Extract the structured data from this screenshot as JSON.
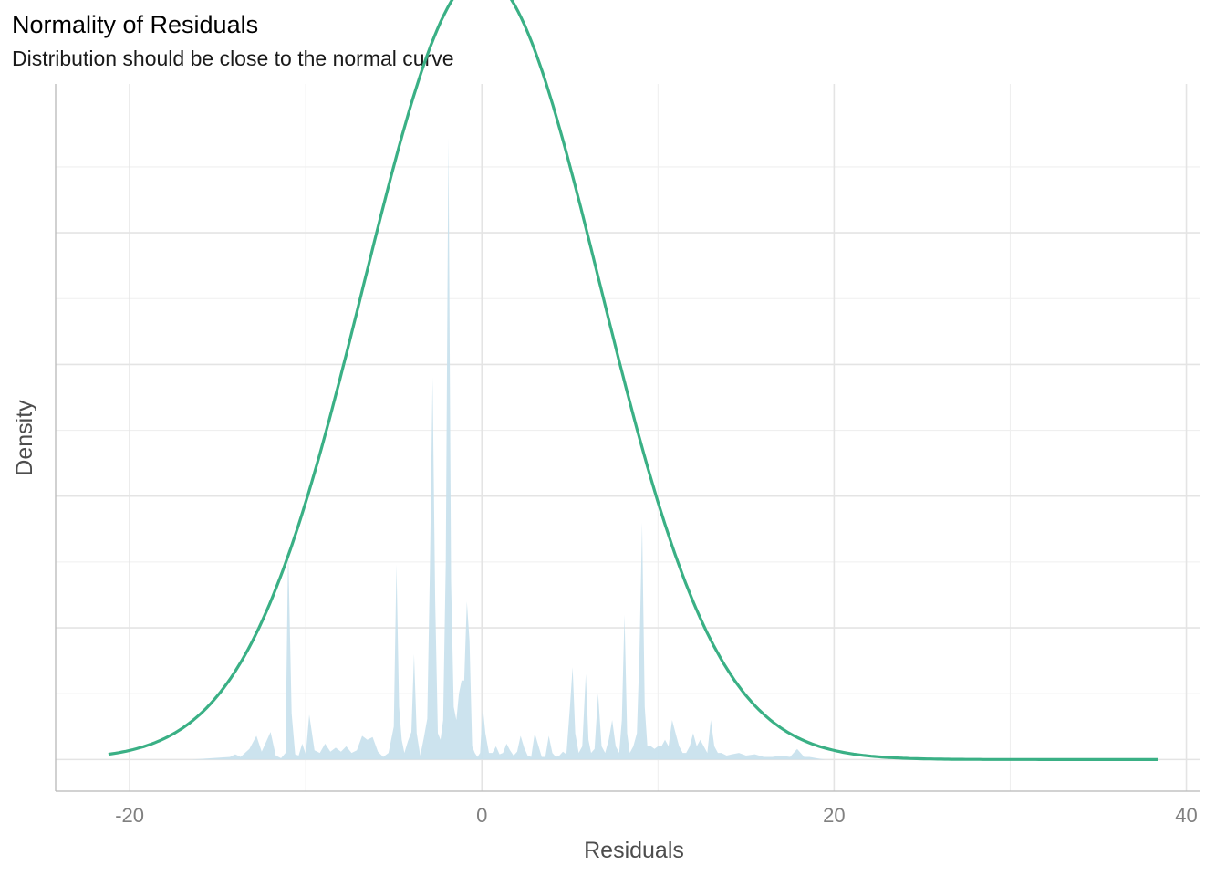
{
  "chart_data": {
    "type": "area",
    "title": "Normality of Residuals",
    "subtitle": "Distribution should be close to the normal curve",
    "xlabel": "Residuals",
    "ylabel": "Density",
    "xlim": [
      -24.2,
      40.8
    ],
    "ylim": [
      -0.0024,
      0.0513
    ],
    "x_ticks": [
      -20,
      0,
      20,
      40
    ],
    "x_tick_labels": [
      "-20",
      "0",
      "20",
      "40"
    ],
    "y_ticks": [
      0,
      0.01,
      0.02,
      0.03,
      0.04
    ],
    "y_minor_ticks": [
      0.005,
      0.015,
      0.025,
      0.035,
      0.045
    ],
    "y_tick_labels_shown": false,
    "grid": true,
    "series": [
      {
        "kind": "density",
        "color": "#c6e0ec",
        "opacity": 0.9,
        "x": [
          -16.5,
          -14.3,
          -14.0,
          -13.7,
          -13.2,
          -12.8,
          -12.5,
          -12.0,
          -11.7,
          -11.4,
          -11.15,
          -11.0,
          -10.8,
          -10.6,
          -10.4,
          -10.2,
          -10.0,
          -9.8,
          -9.5,
          -9.2,
          -8.9,
          -8.6,
          -8.3,
          -8.0,
          -7.7,
          -7.4,
          -7.1,
          -6.8,
          -6.5,
          -6.2,
          -5.9,
          -5.6,
          -5.3,
          -5.0,
          -4.85,
          -4.7,
          -4.55,
          -4.4,
          -4.2,
          -4.0,
          -3.85,
          -3.7,
          -3.5,
          -3.3,
          -3.1,
          -2.95,
          -2.8,
          -2.65,
          -2.5,
          -2.35,
          -2.2,
          -2.05,
          -1.9,
          -1.75,
          -1.6,
          -1.45,
          -1.3,
          -1.15,
          -1.0,
          -0.85,
          -0.7,
          -0.55,
          -0.4,
          -0.25,
          -0.1,
          0.05,
          0.2,
          0.4,
          0.6,
          0.8,
          1.0,
          1.2,
          1.4,
          1.6,
          1.8,
          2.0,
          2.2,
          2.4,
          2.6,
          2.8,
          3.0,
          3.2,
          3.4,
          3.6,
          3.8,
          4.0,
          4.2,
          4.4,
          4.6,
          4.8,
          5.0,
          5.15,
          5.3,
          5.5,
          5.7,
          5.9,
          6.05,
          6.2,
          6.4,
          6.6,
          6.8,
          7.0,
          7.2,
          7.4,
          7.6,
          7.8,
          7.95,
          8.1,
          8.25,
          8.4,
          8.6,
          8.8,
          8.95,
          9.1,
          9.25,
          9.4,
          9.6,
          9.8,
          10.0,
          10.2,
          10.4,
          10.6,
          10.8,
          11.0,
          11.2,
          11.4,
          11.6,
          11.8,
          12.0,
          12.2,
          12.4,
          12.6,
          12.8,
          13.0,
          13.2,
          13.4,
          13.6,
          13.9,
          14.2,
          14.6,
          15.0,
          15.5,
          16.0,
          16.5,
          17.0,
          17.5,
          17.9,
          18.1,
          18.3,
          18.6,
          19.0,
          19.5
        ],
        "y": [
          0,
          0.0002,
          0.0004,
          0.0002,
          0.0008,
          0.0018,
          0.0006,
          0.0021,
          0.0003,
          0.0001,
          0.0005,
          0.0162,
          0.0035,
          0.0004,
          0.0003,
          0.0012,
          0.0004,
          0.0034,
          0.0007,
          0.0005,
          0.0012,
          0.0006,
          0.0009,
          0.0006,
          0.001,
          0.0005,
          0.0007,
          0.0018,
          0.0015,
          0.0017,
          0.0006,
          0.0002,
          0.0005,
          0.0025,
          0.0148,
          0.004,
          0.0015,
          0.0005,
          0.0014,
          0.0021,
          0.008,
          0.002,
          0.0003,
          0.0016,
          0.0031,
          0.0145,
          0.029,
          0.012,
          0.002,
          0.0015,
          0.003,
          0.015,
          0.0472,
          0.0135,
          0.004,
          0.003,
          0.005,
          0.006,
          0.006,
          0.012,
          0.009,
          0.001,
          0.0005,
          0.0002,
          0.0005,
          0.004,
          0.002,
          0.0005,
          0.0005,
          0.001,
          0.0004,
          0.0005,
          0.0012,
          0.0007,
          0.0003,
          0.0006,
          0.0018,
          0.0009,
          0.0003,
          0.0002,
          0.002,
          0.0011,
          0.0002,
          0.0002,
          0.0018,
          0.0005,
          0.0002,
          0.0003,
          0.0006,
          0.0004,
          0.004,
          0.007,
          0.002,
          0.0005,
          0.001,
          0.0065,
          0.0015,
          0.0005,
          0.0008,
          0.005,
          0.001,
          0.0005,
          0.0015,
          0.003,
          0.001,
          0.0005,
          0.003,
          0.011,
          0.002,
          0.0005,
          0.001,
          0.002,
          0.008,
          0.018,
          0.004,
          0.001,
          0.001,
          0.0008,
          0.001,
          0.001,
          0.0015,
          0.001,
          0.003,
          0.002,
          0.001,
          0.0005,
          0.0005,
          0.001,
          0.002,
          0.001,
          0.0015,
          0.001,
          0.0005,
          0.003,
          0.001,
          0.0005,
          0.0005,
          0.0003,
          0.0004,
          0.0005,
          0.0003,
          0.0004,
          0.0002,
          0.0002,
          0.0003,
          0.0002,
          0.0008,
          0.0005,
          0.0002,
          0.0002,
          0.0001,
          0
        ]
      },
      {
        "kind": "normal-curve",
        "color": "#3ab085",
        "mean": 0,
        "sd": 6.7,
        "x_range": [
          -21.2,
          38.4
        ]
      }
    ]
  }
}
